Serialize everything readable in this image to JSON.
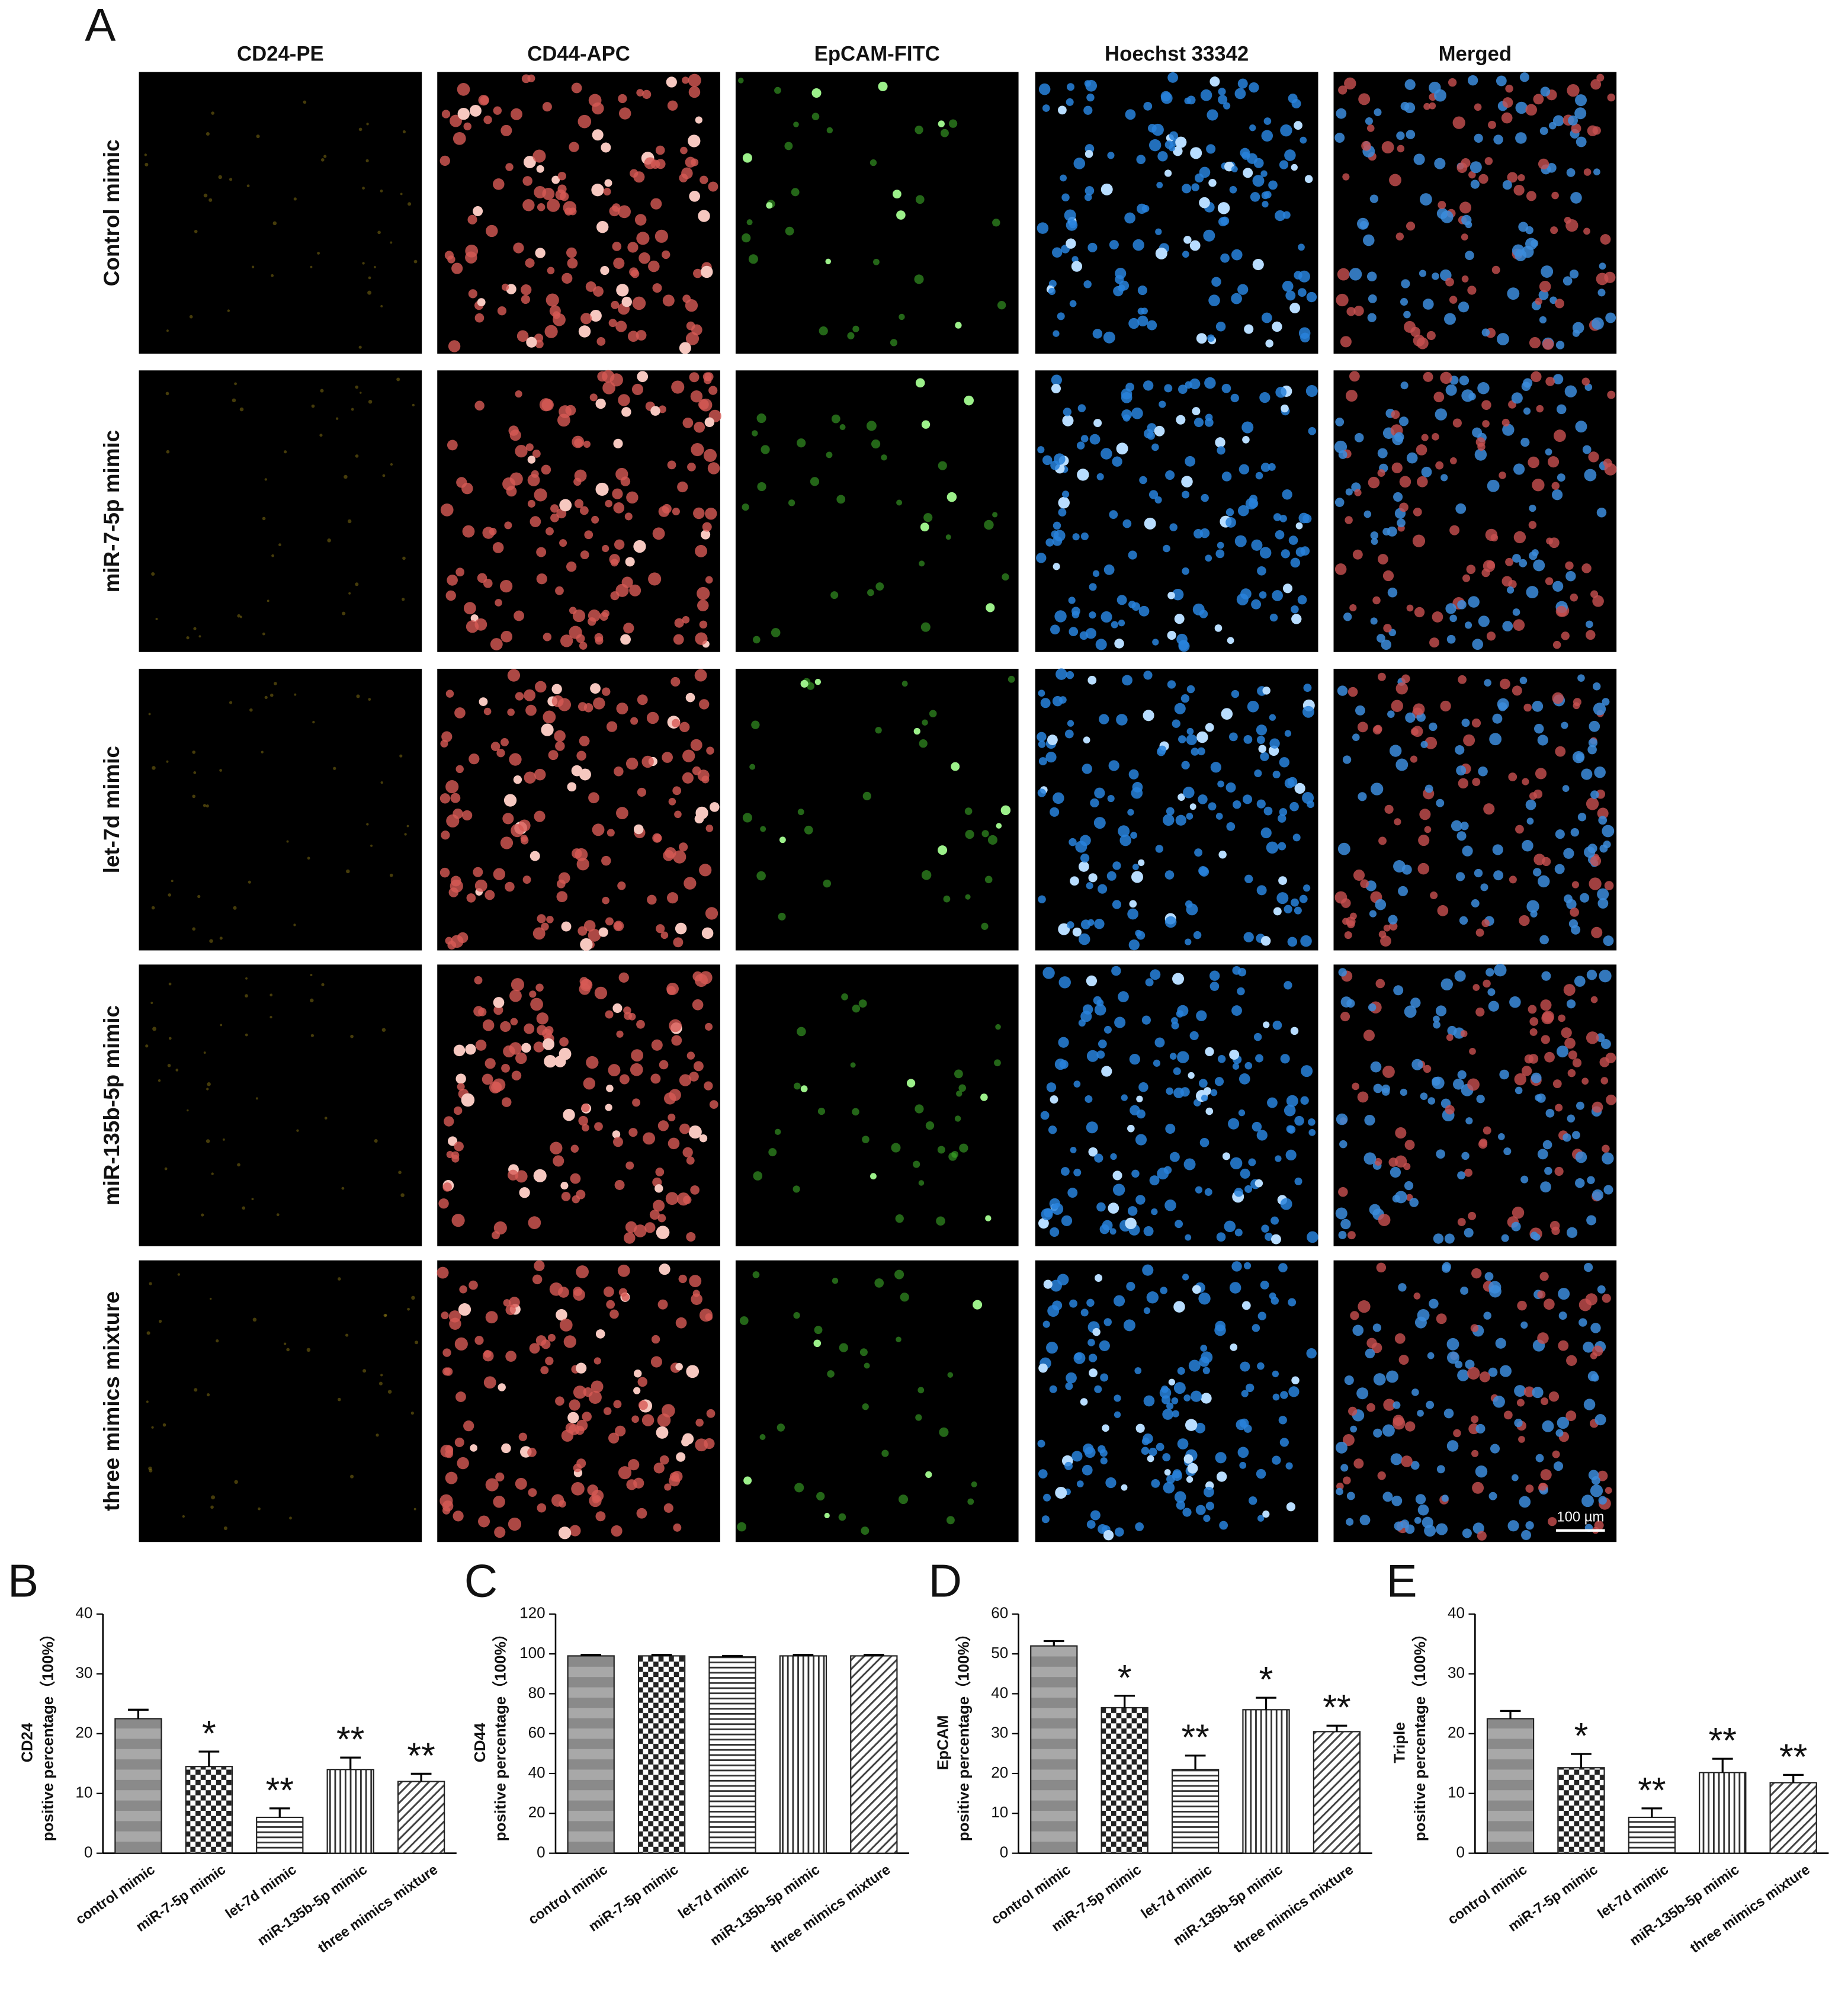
{
  "panel_a": {
    "letter": "A",
    "columns": [
      "CD24-PE",
      "CD44-APC",
      "EpCAM-FITC",
      "Hoechst 33342",
      "Merged"
    ],
    "rows": [
      "Control mimic",
      "miR-7-5p mimic",
      "let-7d mimic",
      "miR-135b-5p mimic",
      "three mimics mixture"
    ],
    "scale_bar": "100 µm"
  },
  "chart_data": [
    {
      "type": "bar",
      "panel": "B",
      "ylabel_title": "CD24",
      "ylabel": "positive percentage（100%）",
      "categories": [
        "control mimic",
        "miR-7-5p mimic",
        "let-7d mimic",
        "miR-135b-5p mimic",
        "three mimics mixture"
      ],
      "values": [
        22.5,
        14.5,
        6,
        14,
        12
      ],
      "errors": [
        1.5,
        2.5,
        1.5,
        2,
        1.3
      ],
      "annotations": [
        null,
        "*",
        "**",
        "**",
        "**"
      ],
      "ylim": [
        0,
        40
      ],
      "yticks": [
        0,
        10,
        20,
        30,
        40
      ]
    },
    {
      "type": "bar",
      "panel": "C",
      "ylabel_title": "CD44",
      "ylabel": "positive percentage（100%）",
      "categories": [
        "control mimic",
        "miR-7-5p mimic",
        "let-7d mimic",
        "miR-135b-5p mimic",
        "three mimics mixture"
      ],
      "values": [
        99,
        99,
        98.5,
        99,
        99
      ],
      "errors": [
        0.5,
        0.5,
        0.5,
        0.5,
        0.5
      ],
      "ylim": [
        0,
        120
      ],
      "yticks": [
        0,
        20,
        40,
        60,
        80,
        100,
        120
      ]
    },
    {
      "type": "bar",
      "panel": "D",
      "ylabel_title": "EpCAM",
      "ylabel": "positive percentage（100%）",
      "categories": [
        "control mimic",
        "miR-7-5p mimic",
        "let-7d mimic",
        "miR-135b-5p mimic",
        "three mimics mixture"
      ],
      "values": [
        52,
        36.5,
        21,
        36,
        30.5
      ],
      "errors": [
        1.2,
        3,
        3.5,
        3,
        1.5
      ],
      "annotations": [
        null,
        "*",
        "**",
        "*",
        "**"
      ],
      "ylim": [
        0,
        60
      ],
      "yticks": [
        0,
        10,
        20,
        30,
        40,
        50,
        60
      ]
    },
    {
      "type": "bar",
      "panel": "E",
      "ylabel_title": "Triple",
      "ylabel": "positive percentage（100%）",
      "categories": [
        "control mimic",
        "miR-7-5p mimic",
        "let-7d mimic",
        "miR-135b-5p mimic",
        "three mimics mixture"
      ],
      "values": [
        22.5,
        14.3,
        6,
        13.5,
        11.8
      ],
      "errors": [
        1.3,
        2.3,
        1.5,
        2.3,
        1.3
      ],
      "annotations": [
        null,
        "*",
        "**",
        "**",
        "**"
      ],
      "ylim": [
        0,
        40
      ],
      "yticks": [
        0,
        10,
        20,
        30,
        40
      ]
    }
  ]
}
